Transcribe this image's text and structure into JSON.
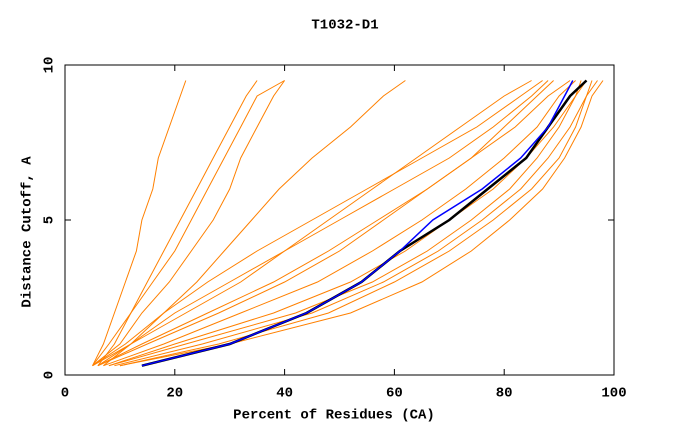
{
  "chart_data": {
    "type": "line",
    "title": "T1032-D1",
    "x_label": "Percent of Residues (CA)",
    "y_label": "Distance Cutoff, A",
    "xlim": [
      0,
      100
    ],
    "xticks": [
      0,
      20,
      40,
      60,
      80,
      100
    ],
    "ylim": [
      0,
      10
    ],
    "yticks": [
      0,
      5,
      10
    ],
    "cutoffs": [
      0.3,
      1,
      2,
      3,
      4,
      5,
      6,
      7,
      8,
      9,
      9.5
    ],
    "series": [
      {
        "color": "#ff8000",
        "x": [
          5,
          7,
          9,
          11,
          13,
          14,
          16,
          17,
          19,
          21,
          22
        ]
      },
      {
        "color": "#ff8000",
        "x": [
          6,
          9,
          12,
          15,
          18,
          21,
          24,
          27,
          30,
          33,
          35
        ]
      },
      {
        "color": "#ff8000",
        "x": [
          5,
          8,
          12,
          16,
          20,
          23,
          26,
          29,
          32,
          35,
          40
        ]
      },
      {
        "color": "#ff8000",
        "x": [
          5,
          10,
          14,
          19,
          23,
          27,
          30,
          32,
          35,
          38,
          40
        ]
      },
      {
        "color": "#ff8000",
        "x": [
          7,
          12,
          18,
          24,
          29,
          34,
          39,
          45,
          52,
          58,
          62
        ]
      },
      {
        "color": "#ff8000",
        "x": [
          5,
          12,
          22,
          32,
          40,
          48,
          56,
          64,
          72,
          80,
          85
        ]
      },
      {
        "color": "#ff8000",
        "x": [
          6,
          15,
          28,
          40,
          50,
          58,
          66,
          74,
          82,
          88,
          92
        ]
      },
      {
        "color": "#ff8000",
        "x": [
          8,
          20,
          38,
          52,
          62,
          70,
          78,
          84,
          89,
          93,
          95
        ]
      },
      {
        "color": "#ff8000",
        "x": [
          9,
          25,
          45,
          58,
          68,
          76,
          83,
          88,
          92,
          95,
          97
        ]
      },
      {
        "color": "#ff8000",
        "x": [
          10,
          30,
          52,
          65,
          74,
          81,
          87,
          91,
          94,
          96,
          98
        ]
      },
      {
        "color": "#ff8000",
        "x": [
          7,
          18,
          32,
          46,
          56,
          65,
          73,
          80,
          86,
          90,
          93
        ]
      },
      {
        "color": "#ff8000",
        "x": [
          6,
          14,
          26,
          38,
          48,
          57,
          66,
          74,
          80,
          86,
          89
        ]
      },
      {
        "color": "#ff8000",
        "x": [
          10,
          28,
          48,
          60,
          70,
          78,
          85,
          90,
          93,
          95,
          96
        ]
      },
      {
        "color": "#ff8000",
        "x": [
          8,
          22,
          42,
          56,
          66,
          74,
          81,
          86,
          90,
          93,
          94
        ]
      },
      {
        "color": "#ff8000",
        "x": [
          6,
          12,
          20,
          30,
          40,
          50,
          60,
          70,
          78,
          85,
          88
        ]
      },
      {
        "color": "#ff8000",
        "x": [
          5,
          11,
          18,
          26,
          35,
          45,
          55,
          65,
          75,
          83,
          87
        ]
      },
      {
        "color": "#000000",
        "x": [
          14,
          30,
          44,
          54,
          61,
          70,
          77,
          84,
          88,
          92,
          95
        ]
      },
      {
        "color": "#0000ff",
        "x": [
          14,
          30,
          44,
          54,
          61,
          67,
          76,
          83,
          88,
          91,
          92.5
        ]
      }
    ]
  }
}
